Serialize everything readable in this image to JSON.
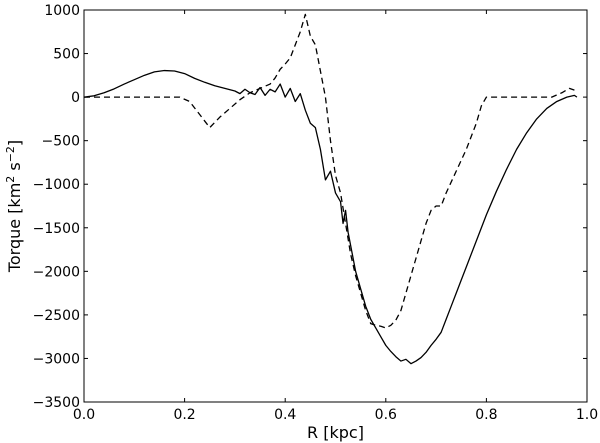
{
  "chart_data": {
    "type": "line",
    "xlabel": "R [kpc]",
    "ylabel_parts": {
      "prefix": "Torque [km",
      "exp1": "2",
      "mid": " s",
      "exp2": "−2",
      "suffix": "]"
    },
    "xlim": [
      0.0,
      1.0
    ],
    "ylim": [
      -3500,
      1000
    ],
    "xticks": [
      0.0,
      0.2,
      0.4,
      0.6,
      0.8,
      1.0
    ],
    "xtick_labels": [
      "0.0",
      "0.2",
      "0.4",
      "0.6",
      "0.8",
      "1.0"
    ],
    "yticks": [
      1000,
      500,
      0,
      -500,
      -1000,
      -1500,
      -2000,
      -2500,
      -3000,
      -3500
    ],
    "ytick_labels": [
      "1000",
      "500",
      "0",
      "−500",
      "−1000",
      "−1500",
      "−2000",
      "−2500",
      "−3000",
      "−3500"
    ],
    "grid": false,
    "legend": "none",
    "series": [
      {
        "style": "solid",
        "color": "#000000",
        "points": [
          [
            0.0,
            0
          ],
          [
            0.02,
            15
          ],
          [
            0.04,
            50
          ],
          [
            0.06,
            95
          ],
          [
            0.08,
            150
          ],
          [
            0.1,
            200
          ],
          [
            0.12,
            250
          ],
          [
            0.14,
            290
          ],
          [
            0.16,
            305
          ],
          [
            0.18,
            300
          ],
          [
            0.2,
            270
          ],
          [
            0.22,
            215
          ],
          [
            0.24,
            170
          ],
          [
            0.26,
            130
          ],
          [
            0.28,
            100
          ],
          [
            0.3,
            70
          ],
          [
            0.31,
            40
          ],
          [
            0.32,
            90
          ],
          [
            0.33,
            50
          ],
          [
            0.34,
            30
          ],
          [
            0.35,
            110
          ],
          [
            0.36,
            20
          ],
          [
            0.37,
            90
          ],
          [
            0.38,
            60
          ],
          [
            0.39,
            150
          ],
          [
            0.4,
            0
          ],
          [
            0.41,
            100
          ],
          [
            0.42,
            -50
          ],
          [
            0.43,
            40
          ],
          [
            0.44,
            -150
          ],
          [
            0.45,
            -300
          ],
          [
            0.46,
            -350
          ],
          [
            0.47,
            -600
          ],
          [
            0.48,
            -950
          ],
          [
            0.49,
            -850
          ],
          [
            0.5,
            -1100
          ],
          [
            0.51,
            -1200
          ],
          [
            0.515,
            -1450
          ],
          [
            0.52,
            -1300
          ],
          [
            0.525,
            -1550
          ],
          [
            0.53,
            -1700
          ],
          [
            0.54,
            -2000
          ],
          [
            0.55,
            -2200
          ],
          [
            0.56,
            -2400
          ],
          [
            0.57,
            -2550
          ],
          [
            0.58,
            -2650
          ],
          [
            0.59,
            -2750
          ],
          [
            0.6,
            -2850
          ],
          [
            0.61,
            -2920
          ],
          [
            0.62,
            -2980
          ],
          [
            0.63,
            -3030
          ],
          [
            0.64,
            -3010
          ],
          [
            0.65,
            -3060
          ],
          [
            0.66,
            -3030
          ],
          [
            0.67,
            -2990
          ],
          [
            0.68,
            -2930
          ],
          [
            0.69,
            -2850
          ],
          [
            0.7,
            -2780
          ],
          [
            0.71,
            -2700
          ],
          [
            0.72,
            -2550
          ],
          [
            0.73,
            -2400
          ],
          [
            0.74,
            -2250
          ],
          [
            0.75,
            -2100
          ],
          [
            0.76,
            -1950
          ],
          [
            0.78,
            -1650
          ],
          [
            0.8,
            -1350
          ],
          [
            0.82,
            -1080
          ],
          [
            0.84,
            -830
          ],
          [
            0.86,
            -600
          ],
          [
            0.88,
            -410
          ],
          [
            0.9,
            -250
          ],
          [
            0.92,
            -130
          ],
          [
            0.94,
            -50
          ],
          [
            0.96,
            0
          ],
          [
            0.975,
            20
          ],
          [
            0.98,
            0
          ]
        ]
      },
      {
        "style": "dashed",
        "color": "#000000",
        "points": [
          [
            0.0,
            0
          ],
          [
            0.05,
            0
          ],
          [
            0.1,
            0
          ],
          [
            0.15,
            0
          ],
          [
            0.19,
            0
          ],
          [
            0.21,
            -50
          ],
          [
            0.23,
            -200
          ],
          [
            0.25,
            -350
          ],
          [
            0.27,
            -230
          ],
          [
            0.29,
            -130
          ],
          [
            0.31,
            -30
          ],
          [
            0.33,
            50
          ],
          [
            0.35,
            100
          ],
          [
            0.37,
            150
          ],
          [
            0.38,
            220
          ],
          [
            0.39,
            320
          ],
          [
            0.4,
            380
          ],
          [
            0.41,
            450
          ],
          [
            0.42,
            600
          ],
          [
            0.43,
            750
          ],
          [
            0.44,
            950
          ],
          [
            0.45,
            700
          ],
          [
            0.46,
            600
          ],
          [
            0.47,
            300
          ],
          [
            0.48,
            0
          ],
          [
            0.49,
            -500
          ],
          [
            0.5,
            -900
          ],
          [
            0.51,
            -1100
          ],
          [
            0.52,
            -1450
          ],
          [
            0.53,
            -1800
          ],
          [
            0.54,
            -2050
          ],
          [
            0.55,
            -2250
          ],
          [
            0.56,
            -2450
          ],
          [
            0.57,
            -2600
          ],
          [
            0.58,
            -2620
          ],
          [
            0.59,
            -2630
          ],
          [
            0.6,
            -2650
          ],
          [
            0.61,
            -2620
          ],
          [
            0.62,
            -2560
          ],
          [
            0.63,
            -2450
          ],
          [
            0.64,
            -2250
          ],
          [
            0.65,
            -2050
          ],
          [
            0.66,
            -1850
          ],
          [
            0.67,
            -1650
          ],
          [
            0.68,
            -1450
          ],
          [
            0.69,
            -1300
          ],
          [
            0.7,
            -1250
          ],
          [
            0.71,
            -1250
          ],
          [
            0.72,
            -1100
          ],
          [
            0.74,
            -850
          ],
          [
            0.76,
            -600
          ],
          [
            0.78,
            -300
          ],
          [
            0.79,
            -100
          ],
          [
            0.8,
            0
          ],
          [
            0.82,
            0
          ],
          [
            0.86,
            0
          ],
          [
            0.9,
            0
          ],
          [
            0.93,
            0
          ],
          [
            0.95,
            50
          ],
          [
            0.965,
            100
          ],
          [
            0.975,
            80
          ]
        ]
      }
    ]
  }
}
